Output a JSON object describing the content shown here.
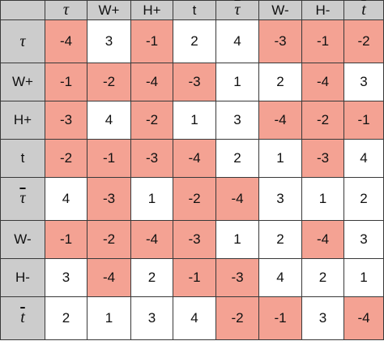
{
  "colors": {
    "header_bg": "#cccccc",
    "negative_bg": "#f4a293",
    "non_negative_bg": "#ffffff",
    "border": "#3a3a3a"
  },
  "headers": [
    {
      "label": "τ",
      "style": "symbol",
      "bar": false
    },
    {
      "label": "W+",
      "style": "text",
      "bar": false
    },
    {
      "label": "H+",
      "style": "text",
      "bar": false
    },
    {
      "label": "t",
      "style": "text",
      "bar": false
    },
    {
      "label": "τ",
      "style": "symbol",
      "bar": true
    },
    {
      "label": "W-",
      "style": "text",
      "bar": false
    },
    {
      "label": "H-",
      "style": "text",
      "bar": false
    },
    {
      "label": "t",
      "style": "symbol",
      "bar": true
    }
  ],
  "rows": [
    {
      "label": {
        "label": "τ",
        "style": "symbol",
        "bar": false
      },
      "values": [
        "-4",
        "3",
        "-1",
        "2",
        "4",
        "-3",
        "-1",
        "-2"
      ]
    },
    {
      "label": {
        "label": "W+",
        "style": "text",
        "bar": false
      },
      "values": [
        "-1",
        "-2",
        "-4",
        "-3",
        "1",
        "2",
        "-4",
        "3"
      ]
    },
    {
      "label": {
        "label": "H+",
        "style": "text",
        "bar": false
      },
      "values": [
        "-3",
        "4",
        "-2",
        "1",
        "3",
        "-4",
        "-2",
        "-1"
      ]
    },
    {
      "label": {
        "label": "t",
        "style": "text",
        "bar": false
      },
      "values": [
        "-2",
        "-1",
        "-3",
        "-4",
        "2",
        "1",
        "-3",
        "4"
      ]
    },
    {
      "label": {
        "label": "τ",
        "style": "symbol",
        "bar": true
      },
      "values": [
        "4",
        "-3",
        "1",
        "-2",
        "-4",
        "3",
        "1",
        "2"
      ]
    },
    {
      "label": {
        "label": "W-",
        "style": "text",
        "bar": false
      },
      "values": [
        "-1",
        "-2",
        "-4",
        "-3",
        "1",
        "2",
        "-4",
        "3"
      ]
    },
    {
      "label": {
        "label": "H-",
        "style": "text",
        "bar": false
      },
      "values": [
        "3",
        "-4",
        "2",
        "-1",
        "-3",
        "4",
        "2",
        "1"
      ]
    },
    {
      "label": {
        "label": "t",
        "style": "symbol",
        "bar": true
      },
      "values": [
        "2",
        "1",
        "3",
        "4",
        "-2",
        "-1",
        "3",
        "-4"
      ]
    }
  ]
}
